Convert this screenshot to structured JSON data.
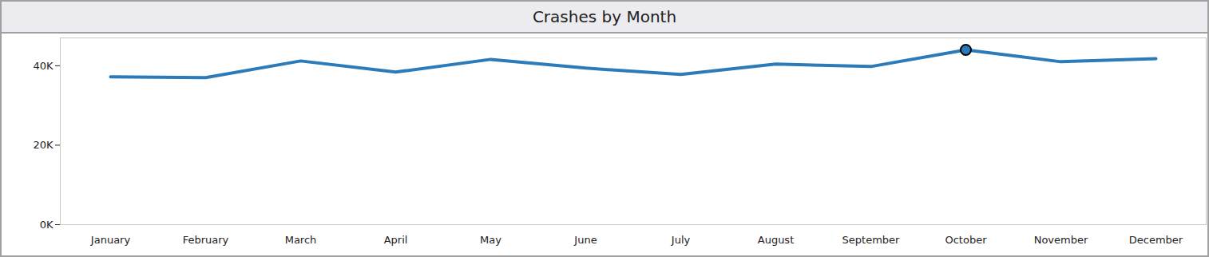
{
  "chart_data": {
    "type": "line",
    "title": "Crashes by Month",
    "categories": [
      "January",
      "February",
      "March",
      "April",
      "May",
      "June",
      "July",
      "August",
      "September",
      "October",
      "November",
      "December"
    ],
    "values": [
      37200,
      37000,
      41200,
      38400,
      41600,
      39400,
      37800,
      40400,
      39800,
      44000,
      41000,
      41800
    ],
    "color": "#2b7bba",
    "ylim": [
      0,
      47000
    ],
    "yticks": [
      {
        "value": 0,
        "label": "0K"
      },
      {
        "value": 20000,
        "label": "20K"
      },
      {
        "value": 40000,
        "label": "40K"
      }
    ],
    "grid": false
  }
}
